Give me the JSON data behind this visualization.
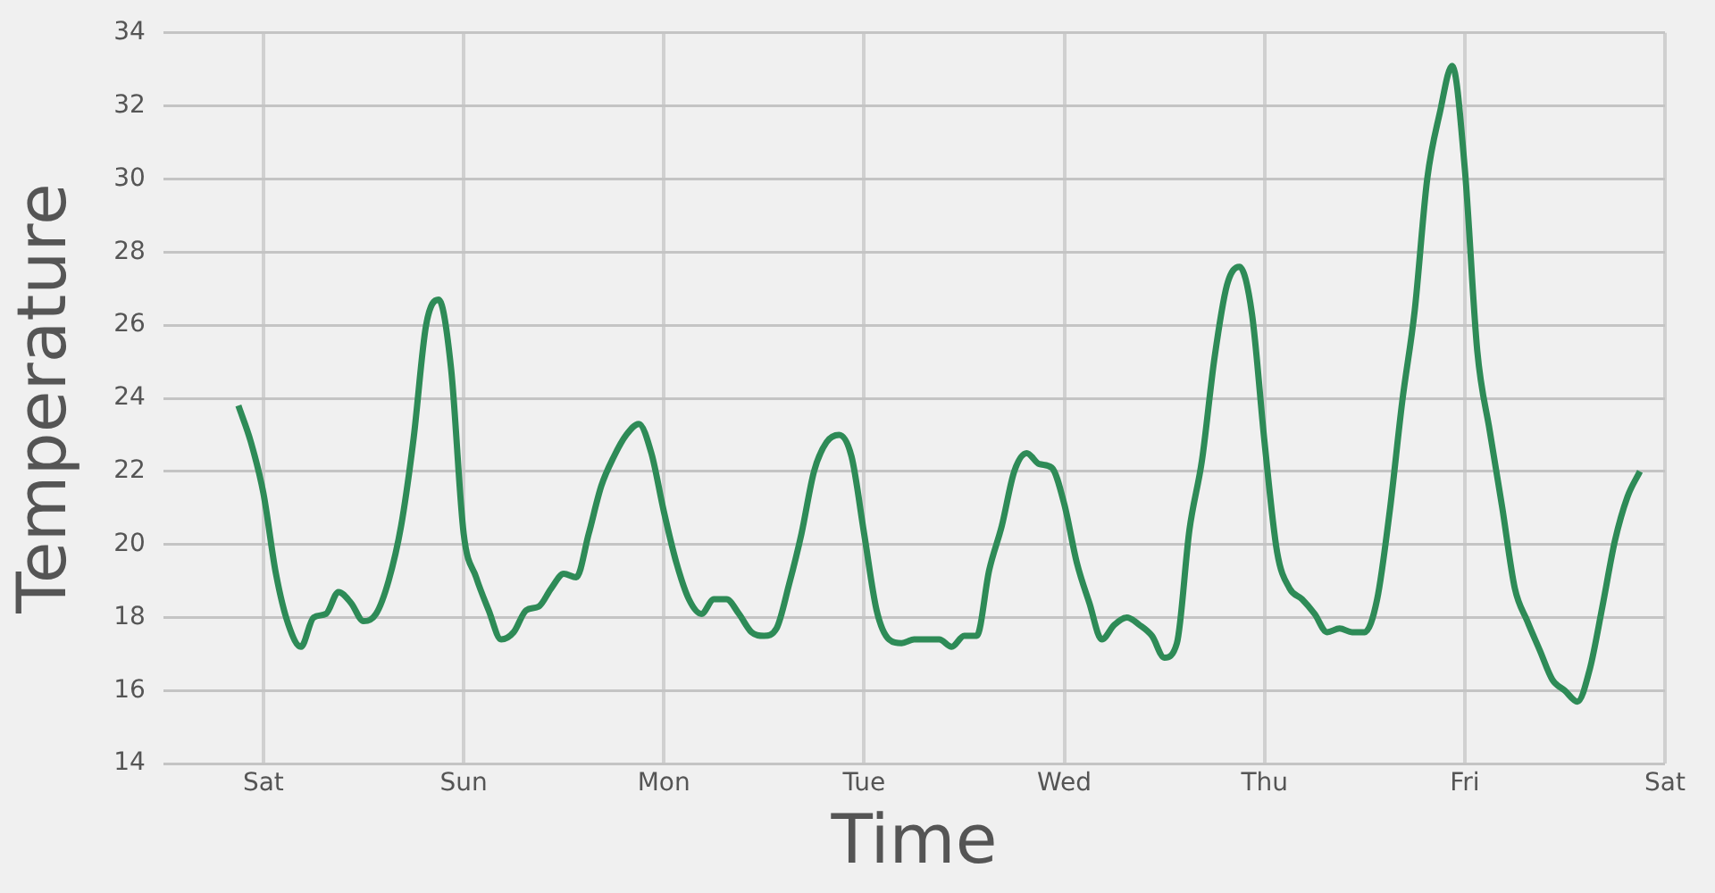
{
  "chart_data": {
    "type": "line",
    "xlabel": "Time",
    "ylabel": "Temperature",
    "categories": [
      null,
      null,
      null,
      null,
      null,
      null,
      null,
      null,
      "Sat",
      null,
      null,
      null,
      null,
      null,
      null,
      null,
      null,
      null,
      null,
      null,
      null,
      null,
      null,
      null,
      "Sun",
      null,
      null,
      null,
      null,
      null,
      null,
      null,
      null,
      null,
      null,
      null,
      null,
      null,
      null,
      null,
      "Mon",
      null,
      null,
      null,
      null,
      null,
      null,
      null,
      null,
      null,
      null,
      null,
      null,
      null,
      null,
      null,
      "Tue",
      null,
      null,
      null,
      null,
      null,
      null,
      null,
      null,
      null,
      null,
      null,
      null,
      null,
      null,
      null,
      "Wed",
      null,
      null,
      null,
      null,
      null,
      null,
      null,
      null,
      null,
      null,
      null,
      null,
      null,
      null,
      null,
      "Thu",
      null,
      null,
      null,
      null,
      null,
      null,
      null,
      null,
      null,
      null,
      null,
      null,
      null,
      null,
      null,
      "Fri",
      null,
      null,
      null,
      null,
      null,
      null,
      null,
      null,
      null,
      null,
      null,
      null,
      null,
      null,
      null,
      "Sat"
    ],
    "ylim": [
      14,
      34
    ],
    "yticks": [
      14,
      16,
      18,
      20,
      22,
      24,
      26,
      28,
      30,
      32,
      34
    ],
    "grid": true,
    "legend": false,
    "marker": "none",
    "series": [
      {
        "color": "#2e8b57",
        "values": [
          null,
          null,
          null,
          null,
          null,
          null,
          23.8,
          22.8,
          21.4,
          19.2,
          17.8,
          17.2,
          18.0,
          18.1,
          18.7,
          18.4,
          17.9,
          18.1,
          19.0,
          20.5,
          22.9,
          26.0,
          26.7,
          24.8,
          20.3,
          19.1,
          18.2,
          17.4,
          17.6,
          18.2,
          18.3,
          18.8,
          19.2,
          19.1,
          20.3,
          21.6,
          22.4,
          23.0,
          23.3,
          22.5,
          20.9,
          19.5,
          18.5,
          18.1,
          18.5,
          18.5,
          18.1,
          17.6,
          17.5,
          17.7,
          18.9,
          20.3,
          22.0,
          22.8,
          23.0,
          22.4,
          20.3,
          18.2,
          17.4,
          17.3,
          17.4,
          17.4,
          17.4,
          17.2,
          17.5,
          17.5,
          19.3,
          20.5,
          22.0,
          22.5,
          22.2,
          22.1,
          21.1,
          19.5,
          18.4,
          17.4,
          17.8,
          18.0,
          17.8,
          17.5,
          16.9,
          17.3,
          20.4,
          22.3,
          25.1,
          27.1,
          27.6,
          26.3,
          22.8,
          19.8,
          18.8,
          18.5,
          18.1,
          17.6,
          17.7,
          17.6,
          17.6,
          18.5,
          20.9,
          23.9,
          26.4,
          30.0,
          31.8,
          33.1,
          30.3,
          25.3,
          23.1,
          21.0,
          18.8,
          17.9,
          17.1,
          16.3,
          16.0,
          15.7,
          16.6,
          18.3,
          20.1,
          21.3,
          22.0,
          null,
          null
        ]
      }
    ]
  }
}
